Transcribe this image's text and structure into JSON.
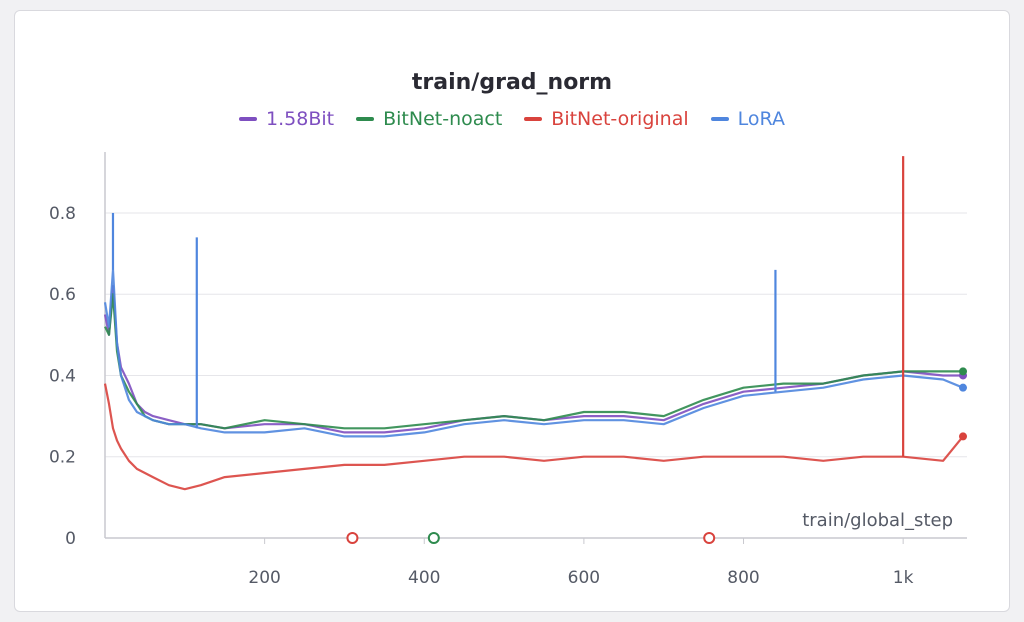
{
  "chart_data": {
    "type": "line",
    "title": "train/grad_norm",
    "xlabel": "train/global_step",
    "ylabel": "",
    "xlim": [
      0,
      1080
    ],
    "ylim": [
      0,
      0.95
    ],
    "x_ticks": [
      200,
      400,
      600,
      800,
      1000
    ],
    "x_tick_labels": [
      "200",
      "400",
      "600",
      "800",
      "1k"
    ],
    "y_ticks": [
      0,
      0.2,
      0.4,
      0.6,
      0.8
    ],
    "y_tick_labels": [
      "0",
      "0.2",
      "0.4",
      "0.6",
      "0.8"
    ],
    "grid": true,
    "legend_position": "top-center",
    "series": [
      {
        "name": "1.58Bit",
        "color": "#7e4fc0",
        "x": [
          0,
          5,
          10,
          15,
          20,
          30,
          40,
          50,
          60,
          80,
          100,
          120,
          150,
          200,
          250,
          300,
          350,
          400,
          450,
          500,
          550,
          600,
          650,
          700,
          750,
          800,
          850,
          900,
          950,
          1000,
          1050,
          1075
        ],
        "y": [
          0.55,
          0.5,
          0.62,
          0.48,
          0.42,
          0.38,
          0.33,
          0.31,
          0.3,
          0.29,
          0.28,
          0.28,
          0.27,
          0.28,
          0.28,
          0.26,
          0.26,
          0.27,
          0.29,
          0.3,
          0.29,
          0.3,
          0.3,
          0.29,
          0.33,
          0.36,
          0.37,
          0.38,
          0.4,
          0.41,
          0.4,
          0.4
        ]
      },
      {
        "name": "BitNet-noact",
        "color": "#2e8b4e",
        "x": [
          0,
          5,
          10,
          15,
          20,
          30,
          40,
          50,
          60,
          80,
          100,
          120,
          150,
          200,
          250,
          300,
          350,
          400,
          450,
          500,
          550,
          600,
          650,
          700,
          750,
          800,
          850,
          900,
          950,
          1000,
          1050,
          1075
        ],
        "y": [
          0.52,
          0.5,
          0.6,
          0.46,
          0.4,
          0.36,
          0.33,
          0.3,
          0.29,
          0.28,
          0.28,
          0.28,
          0.27,
          0.29,
          0.28,
          0.27,
          0.27,
          0.28,
          0.29,
          0.3,
          0.29,
          0.31,
          0.31,
          0.3,
          0.34,
          0.37,
          0.38,
          0.38,
          0.4,
          0.41,
          0.41,
          0.41
        ]
      },
      {
        "name": "BitNet-original",
        "color": "#d9433d",
        "x": [
          0,
          5,
          10,
          15,
          20,
          30,
          40,
          50,
          60,
          80,
          100,
          120,
          150,
          200,
          250,
          300,
          350,
          400,
          450,
          500,
          550,
          600,
          650,
          700,
          750,
          800,
          850,
          900,
          950,
          1000,
          1050,
          1075
        ],
        "y": [
          0.38,
          0.33,
          0.27,
          0.24,
          0.22,
          0.19,
          0.17,
          0.16,
          0.15,
          0.13,
          0.12,
          0.13,
          0.15,
          0.16,
          0.17,
          0.18,
          0.18,
          0.19,
          0.2,
          0.2,
          0.19,
          0.2,
          0.2,
          0.19,
          0.2,
          0.2,
          0.2,
          0.19,
          0.2,
          0.2,
          0.19,
          0.25
        ]
      },
      {
        "name": "LoRA",
        "color": "#4f86de",
        "x": [
          0,
          5,
          10,
          15,
          20,
          30,
          40,
          50,
          60,
          80,
          100,
          120,
          150,
          200,
          250,
          300,
          350,
          400,
          450,
          500,
          550,
          600,
          650,
          700,
          750,
          800,
          850,
          900,
          950,
          1000,
          1050,
          1075
        ],
        "y": [
          0.58,
          0.52,
          0.66,
          0.48,
          0.4,
          0.34,
          0.31,
          0.3,
          0.29,
          0.28,
          0.28,
          0.27,
          0.26,
          0.26,
          0.27,
          0.25,
          0.25,
          0.26,
          0.28,
          0.29,
          0.28,
          0.29,
          0.29,
          0.28,
          0.32,
          0.35,
          0.36,
          0.37,
          0.39,
          0.4,
          0.39,
          0.37
        ]
      }
    ],
    "annotations": [
      {
        "type": "spike",
        "series": "BitNet-original",
        "x": 1000,
        "y": 0.94
      },
      {
        "type": "spike",
        "series": "LoRA",
        "x": 10,
        "y": 0.8
      },
      {
        "type": "spike",
        "series": "LoRA",
        "x": 115,
        "y": 0.74
      },
      {
        "type": "spike",
        "series": "LoRA",
        "x": 840,
        "y": 0.66
      }
    ],
    "markers": [
      {
        "x": 310,
        "color": "#d9433d"
      },
      {
        "x": 412,
        "color": "#2e8b4e"
      },
      {
        "x": 757,
        "color": "#d9433d"
      }
    ]
  }
}
